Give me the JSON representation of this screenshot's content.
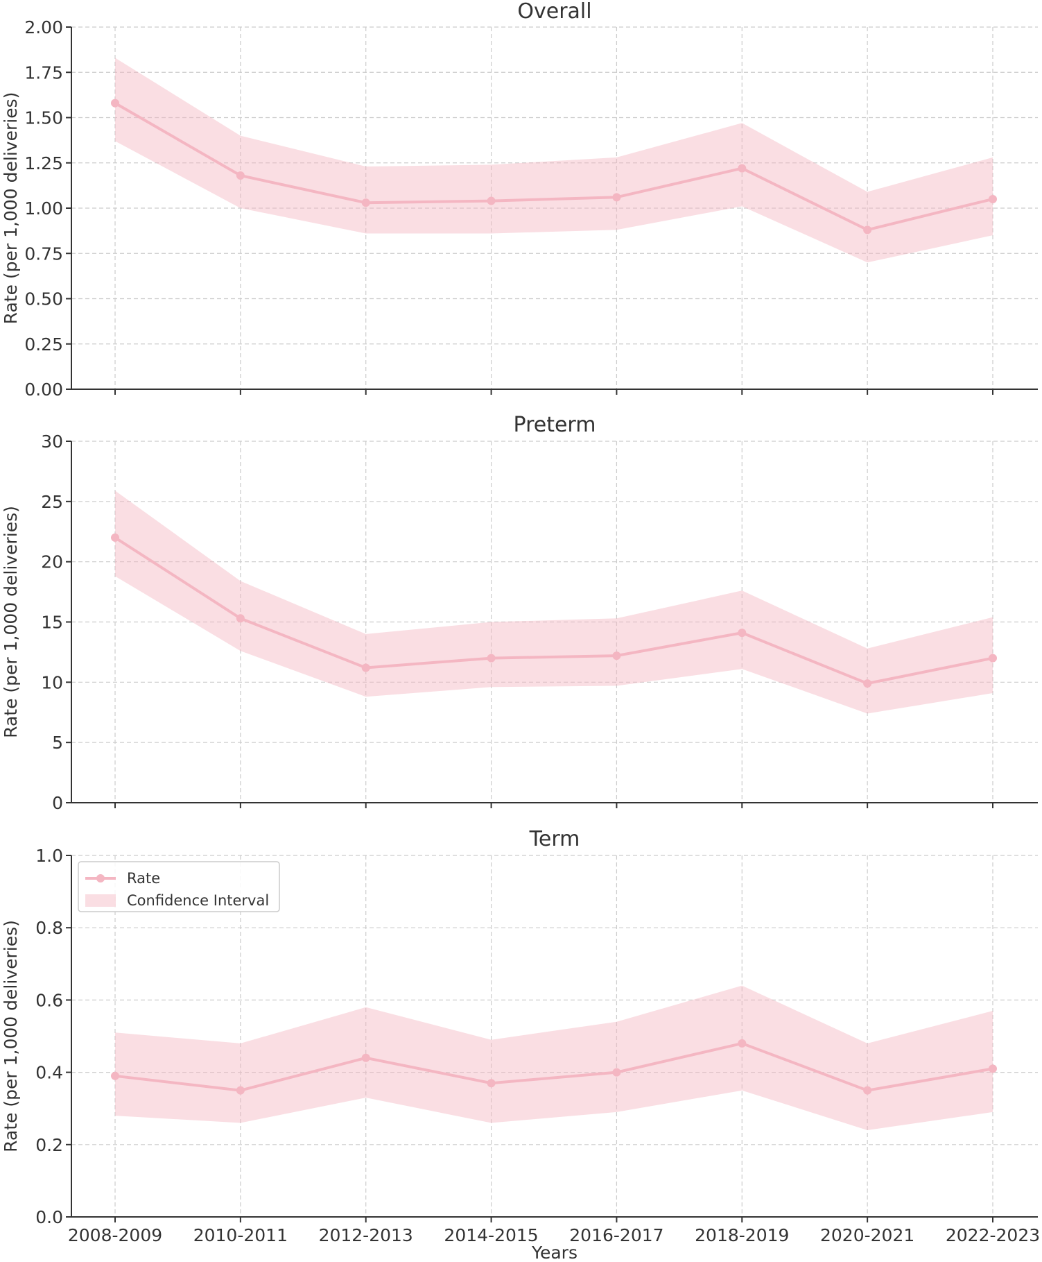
{
  "chart_data": [
    {
      "type": "line",
      "title": "Overall",
      "xlabel": "",
      "ylabel": "Rate (per 1,000 deliveries)",
      "categories": [
        "2008-2009",
        "2010-2011",
        "2012-2013",
        "2014-2015",
        "2016-2017",
        "2018-2019",
        "2020-2021",
        "2022-2023"
      ],
      "ylim": [
        0,
        2.0
      ],
      "yticks": [
        "0.00",
        "0.25",
        "0.50",
        "0.75",
        "1.00",
        "1.25",
        "1.50",
        "1.75",
        "2.00"
      ],
      "series": [
        {
          "name": "Rate",
          "values": [
            1.58,
            1.18,
            1.03,
            1.04,
            1.06,
            1.22,
            0.88,
            1.05
          ]
        },
        {
          "name": "Confidence Interval",
          "lower": [
            1.37,
            1.0,
            0.86,
            0.86,
            0.88,
            1.01,
            0.7,
            0.85
          ],
          "upper": [
            1.83,
            1.4,
            1.23,
            1.24,
            1.28,
            1.47,
            1.09,
            1.28
          ]
        }
      ],
      "grid": true,
      "legend": null,
      "color": "#f4b6c2"
    },
    {
      "type": "line",
      "title": "Preterm",
      "xlabel": "",
      "ylabel": "Rate (per 1,000 deliveries)",
      "categories": [
        "2008-2009",
        "2010-2011",
        "2012-2013",
        "2014-2015",
        "2016-2017",
        "2018-2019",
        "2020-2021",
        "2022-2023"
      ],
      "ylim": [
        0,
        30
      ],
      "yticks": [
        "0",
        "5",
        "10",
        "15",
        "20",
        "25",
        "30"
      ],
      "series": [
        {
          "name": "Rate",
          "values": [
            22.0,
            15.3,
            11.2,
            12.0,
            12.2,
            14.1,
            9.9,
            12.0
          ]
        },
        {
          "name": "Confidence Interval",
          "lower": [
            18.8,
            12.6,
            8.8,
            9.6,
            9.7,
            11.1,
            7.4,
            9.1
          ],
          "upper": [
            25.9,
            18.4,
            14.0,
            15.0,
            15.3,
            17.6,
            12.8,
            15.4
          ]
        }
      ],
      "grid": true,
      "legend": null,
      "color": "#f4b6c2"
    },
    {
      "type": "line",
      "title": "Term",
      "xlabel": "Years",
      "ylabel": "Rate (per 1,000 deliveries)",
      "categories": [
        "2008-2009",
        "2010-2011",
        "2012-2013",
        "2014-2015",
        "2016-2017",
        "2018-2019",
        "2020-2021",
        "2022-2023"
      ],
      "ylim": [
        0,
        1.0
      ],
      "yticks": [
        "0.0",
        "0.2",
        "0.4",
        "0.6",
        "0.8",
        "1.0"
      ],
      "series": [
        {
          "name": "Rate",
          "values": [
            0.39,
            0.35,
            0.44,
            0.37,
            0.4,
            0.48,
            0.35,
            0.41
          ]
        },
        {
          "name": "Confidence Interval",
          "lower": [
            0.28,
            0.26,
            0.33,
            0.26,
            0.29,
            0.35,
            0.24,
            0.29
          ],
          "upper": [
            0.51,
            0.48,
            0.58,
            0.49,
            0.54,
            0.64,
            0.48,
            0.57
          ]
        }
      ],
      "grid": true,
      "legend": {
        "position": "top-left",
        "entries": [
          "Rate",
          "Confidence Interval"
        ]
      },
      "color": "#f4b6c2"
    }
  ]
}
